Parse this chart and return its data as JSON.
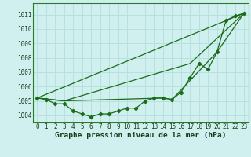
{
  "title": "Graphe pression niveau de la mer (hPa)",
  "bg_color": "#cff0ee",
  "grid_color": "#b8e0de",
  "line_color": "#1a6b1a",
  "xlim": [
    -0.5,
    23.5
  ],
  "ylim": [
    1003.5,
    1011.8
  ],
  "yticks": [
    1004,
    1005,
    1006,
    1007,
    1008,
    1009,
    1010,
    1011
  ],
  "xticks": [
    0,
    1,
    2,
    3,
    4,
    5,
    6,
    7,
    8,
    9,
    10,
    11,
    12,
    13,
    14,
    15,
    16,
    17,
    18,
    19,
    20,
    21,
    22,
    23
  ],
  "series1_x": [
    0,
    1,
    2,
    3,
    4,
    5,
    6,
    7,
    8,
    9,
    10,
    11,
    12,
    13,
    14,
    15,
    16,
    17,
    18,
    19,
    20,
    21,
    22,
    23
  ],
  "series1_y": [
    1005.2,
    1005.1,
    1004.8,
    1004.8,
    1004.3,
    1004.1,
    1003.9,
    1004.1,
    1004.1,
    1004.3,
    1004.5,
    1004.5,
    1005.0,
    1005.2,
    1005.2,
    1005.1,
    1005.6,
    1006.6,
    1007.6,
    1007.2,
    1008.4,
    1010.6,
    1010.9,
    1011.1
  ],
  "series2_x": [
    0,
    23
  ],
  "series2_y": [
    1005.2,
    1011.1
  ],
  "series3_x": [
    0,
    3,
    17,
    23
  ],
  "series3_y": [
    1005.2,
    1005.0,
    1007.6,
    1011.1
  ],
  "series4_x": [
    0,
    3,
    14,
    15,
    20,
    23
  ],
  "series4_y": [
    1005.2,
    1005.0,
    1005.2,
    1005.1,
    1008.4,
    1011.1
  ],
  "tick_fontsize": 5.5,
  "xlabel_fontsize": 6.8
}
